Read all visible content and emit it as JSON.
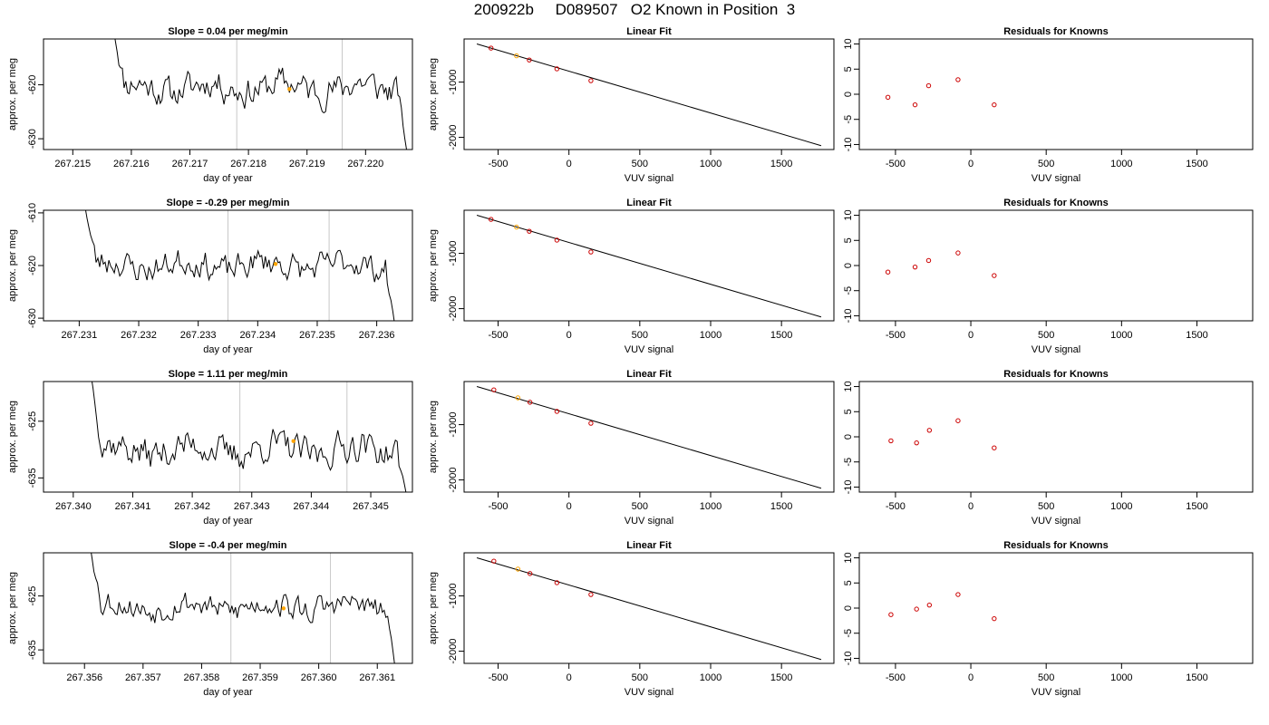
{
  "title": "200922b     D089507   O2 Known in Position  3",
  "chart_data": [
    {
      "type": "line",
      "title": "Slope =  0.04  per meg/min",
      "xlabel": "day of year",
      "ylabel": "approx. per meg",
      "xlim": [
        267.2145,
        267.2208
      ],
      "ylim": [
        -632,
        -611.5
      ],
      "xticks": [
        "267.215",
        "267.216",
        "267.217",
        "267.218",
        "267.219",
        "267.220"
      ],
      "yticks": [
        "-620",
        "-630"
      ],
      "vlines": [
        267.2178,
        267.2196
      ],
      "marker": {
        "x": 267.2187,
        "y": -620.8
      },
      "start": 267.2157,
      "end": 267.2207,
      "base": -620.5,
      "amp": 2.6,
      "seed": 11,
      "rise_y": -610,
      "fall_y": -632
    },
    {
      "type": "scatter",
      "title": "Linear Fit",
      "xlabel": "VUV signal",
      "ylabel": "approx. per meg",
      "xlim": [
        -740,
        1870
      ],
      "ylim": [
        -2220,
        -220
      ],
      "xticks": [
        "-500",
        "0",
        "500",
        "1000",
        "1500"
      ],
      "yticks": [
        "-1000",
        "-2000"
      ],
      "points": [
        {
          "x": -550,
          "y": -385
        },
        {
          "x": -370,
          "y": -525
        },
        {
          "x": -280,
          "y": -600
        },
        {
          "x": -85,
          "y": -760
        },
        {
          "x": 155,
          "y": -975
        }
      ],
      "highlight_index": 1,
      "fit": {
        "x": [
          -650,
          1780
        ],
        "y": [
          -310,
          -2150
        ]
      }
    },
    {
      "type": "scatter",
      "title": "Residuals for Knowns",
      "xlabel": "VUV signal",
      "ylabel": "",
      "xlim": [
        -740,
        1870
      ],
      "ylim": [
        -11,
        11
      ],
      "xticks": [
        "-500",
        "0",
        "500",
        "1000",
        "1500"
      ],
      "yticks": [
        "10",
        "5",
        "0",
        "-5",
        "-10"
      ],
      "points": [
        {
          "x": -550,
          "y": -0.6
        },
        {
          "x": -370,
          "y": -2.1
        },
        {
          "x": -280,
          "y": 1.7
        },
        {
          "x": -85,
          "y": 2.9
        },
        {
          "x": 155,
          "y": -2.1
        }
      ]
    },
    {
      "type": "line",
      "title": "Slope =  -0.29  per meg/min",
      "xlabel": "day of year",
      "ylabel": "approx. per meg",
      "xlim": [
        267.2304,
        267.2366
      ],
      "ylim": [
        -630.5,
        -609.5
      ],
      "xticks": [
        "267.231",
        "267.232",
        "267.233",
        "267.234",
        "267.235",
        "267.236"
      ],
      "yticks": [
        "-610",
        "-620",
        "-630"
      ],
      "vlines": [
        267.2335,
        267.2352
      ],
      "marker": {
        "x": 267.2343,
        "y": -619.7
      },
      "start": 267.2311,
      "end": 267.2363,
      "base": -620,
      "amp": 2.4,
      "seed": 23,
      "rise_y": -609,
      "fall_y": -631
    },
    {
      "type": "scatter",
      "title": "Linear Fit",
      "xlabel": "VUV signal",
      "ylabel": "approx. per meg",
      "xlim": [
        -740,
        1870
      ],
      "ylim": [
        -2220,
        -220
      ],
      "xticks": [
        "-500",
        "0",
        "500",
        "1000",
        "1500"
      ],
      "yticks": [
        "-1000",
        "-2000"
      ],
      "points": [
        {
          "x": -550,
          "y": -385
        },
        {
          "x": -370,
          "y": -525
        },
        {
          "x": -280,
          "y": -600
        },
        {
          "x": -85,
          "y": -760
        },
        {
          "x": 155,
          "y": -975
        }
      ],
      "highlight_index": 1,
      "fit": {
        "x": [
          -650,
          1780
        ],
        "y": [
          -310,
          -2150
        ]
      }
    },
    {
      "type": "scatter",
      "title": "Residuals for Knowns",
      "xlabel": "VUV signal",
      "ylabel": "",
      "xlim": [
        -740,
        1870
      ],
      "ylim": [
        -11,
        11
      ],
      "xticks": [
        "-500",
        "0",
        "500",
        "1000",
        "1500"
      ],
      "yticks": [
        "10",
        "5",
        "0",
        "-5",
        "-10"
      ],
      "points": [
        {
          "x": -550,
          "y": -1.3
        },
        {
          "x": -370,
          "y": -0.3
        },
        {
          "x": -280,
          "y": 1.0
        },
        {
          "x": -85,
          "y": 2.5
        },
        {
          "x": 155,
          "y": -2.0
        }
      ]
    },
    {
      "type": "line",
      "title": "Slope =  1.11  per meg/min",
      "xlabel": "day of year",
      "ylabel": "approx. per meg",
      "xlim": [
        267.3395,
        267.3457
      ],
      "ylim": [
        -637.5,
        -618
      ],
      "xticks": [
        "267.340",
        "267.341",
        "267.342",
        "267.343",
        "267.344",
        "267.345"
      ],
      "yticks": [
        "-625",
        "-635"
      ],
      "vlines": [
        267.3428,
        267.3446
      ],
      "marker": {
        "x": 267.3437,
        "y": -628.5
      },
      "start": 267.3403,
      "end": 267.3456,
      "base": -630,
      "amp": 2.6,
      "seed": 37,
      "rise_y": -617,
      "fall_y": -638
    },
    {
      "type": "scatter",
      "title": "Linear Fit",
      "xlabel": "VUV signal",
      "ylabel": "approx. per meg",
      "xlim": [
        -740,
        1870
      ],
      "ylim": [
        -2220,
        -220
      ],
      "xticks": [
        "-500",
        "0",
        "500",
        "1000",
        "1500"
      ],
      "yticks": [
        "-1000",
        "-2000"
      ],
      "points": [
        {
          "x": -530,
          "y": -370
        },
        {
          "x": -360,
          "y": -515
        },
        {
          "x": -275,
          "y": -595
        },
        {
          "x": -85,
          "y": -760
        },
        {
          "x": 155,
          "y": -975
        }
      ],
      "highlight_index": 1,
      "fit": {
        "x": [
          -650,
          1780
        ],
        "y": [
          -310,
          -2150
        ]
      }
    },
    {
      "type": "scatter",
      "title": "Residuals for Knowns",
      "xlabel": "VUV signal",
      "ylabel": "",
      "xlim": [
        -740,
        1870
      ],
      "ylim": [
        -11,
        11
      ],
      "xticks": [
        "-500",
        "0",
        "500",
        "1000",
        "1500"
      ],
      "yticks": [
        "10",
        "5",
        "0",
        "-5",
        "-10"
      ],
      "points": [
        {
          "x": -530,
          "y": -0.8
        },
        {
          "x": -360,
          "y": -1.2
        },
        {
          "x": -275,
          "y": 1.3
        },
        {
          "x": -85,
          "y": 3.2
        },
        {
          "x": 155,
          "y": -2.2
        }
      ]
    },
    {
      "type": "line",
      "title": "Slope =  -0.4  per meg/min",
      "xlabel": "day of year",
      "ylabel": "approx. per meg",
      "xlim": [
        267.3553,
        267.3616
      ],
      "ylim": [
        -637.5,
        -617
      ],
      "xticks": [
        "267.356",
        "267.357",
        "267.358",
        "267.359",
        "267.360",
        "267.361"
      ],
      "yticks": [
        "-625",
        "-635"
      ],
      "vlines": [
        267.3585,
        267.3602
      ],
      "marker": {
        "x": 267.3594,
        "y": -627.3
      },
      "start": 267.3561,
      "end": 267.3613,
      "base": -627,
      "amp": 2.2,
      "seed": 53,
      "rise_y": -616,
      "fall_y": -638
    },
    {
      "type": "scatter",
      "title": "Linear Fit",
      "xlabel": "VUV signal",
      "ylabel": "approx. per meg",
      "xlim": [
        -740,
        1870
      ],
      "ylim": [
        -2220,
        -220
      ],
      "xticks": [
        "-500",
        "0",
        "500",
        "1000",
        "1500"
      ],
      "yticks": [
        "-1000",
        "-2000"
      ],
      "points": [
        {
          "x": -530,
          "y": -370
        },
        {
          "x": -360,
          "y": -515
        },
        {
          "x": -275,
          "y": -595
        },
        {
          "x": -85,
          "y": -760
        },
        {
          "x": 155,
          "y": -975
        }
      ],
      "highlight_index": 1,
      "fit": {
        "x": [
          -650,
          1780
        ],
        "y": [
          -310,
          -2150
        ]
      }
    },
    {
      "type": "scatter",
      "title": "Residuals for Knowns",
      "xlabel": "VUV signal",
      "ylabel": "",
      "xlim": [
        -740,
        1870
      ],
      "ylim": [
        -11,
        11
      ],
      "xticks": [
        "-500",
        "0",
        "500",
        "1000",
        "1500"
      ],
      "yticks": [
        "10",
        "5",
        "0",
        "-5",
        "-10"
      ],
      "points": [
        {
          "x": -530,
          "y": -1.3
        },
        {
          "x": -360,
          "y": -0.2
        },
        {
          "x": -275,
          "y": 0.6
        },
        {
          "x": -85,
          "y": 2.7
        },
        {
          "x": 155,
          "y": -2.1
        }
      ]
    }
  ]
}
